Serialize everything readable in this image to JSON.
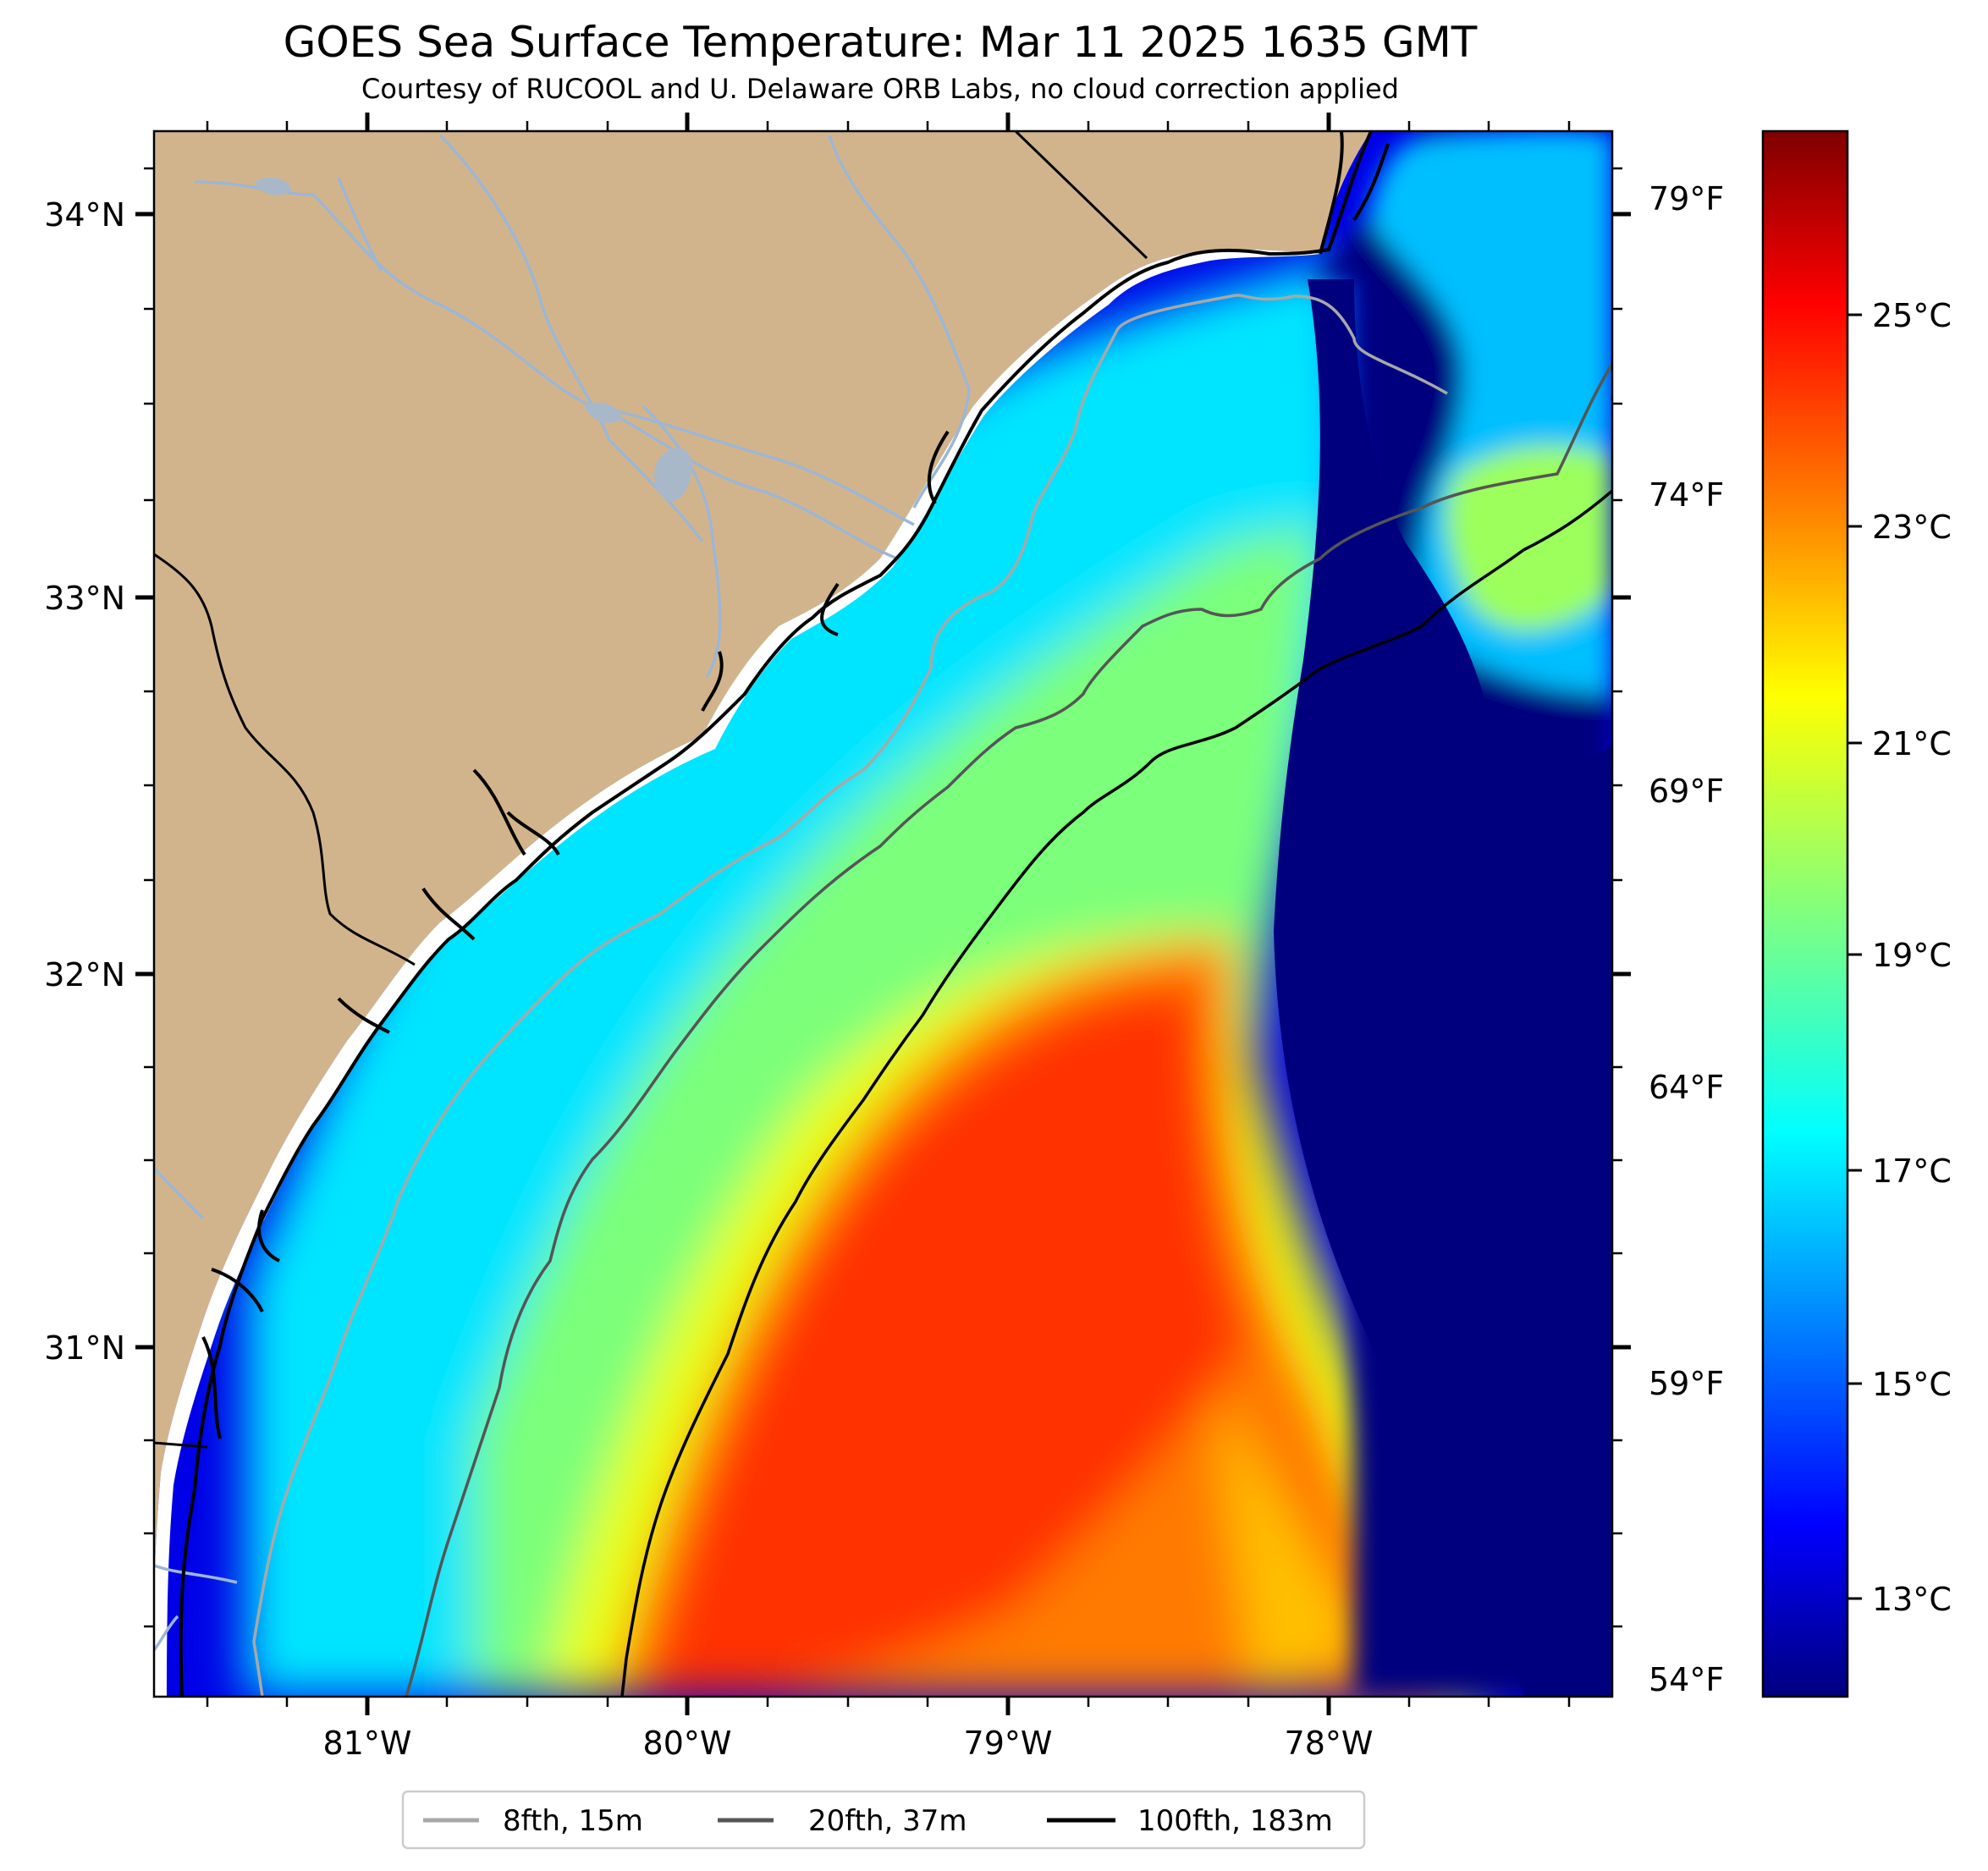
{
  "title": "GOES Sea Surface Temperature: Mar 11 2025 1635 GMT",
  "subtitle": "Courtesy of RUCOOL and U. Delaware ORB Labs, no cloud correction applied",
  "colors": {
    "land": "#D2B48C",
    "rivers": "#9DB6D4",
    "coast": "#000000",
    "contour_8fth": "#A8A8A8",
    "contour_20fth": "#555555",
    "contour_100fth": "#000000",
    "colormap": "jet"
  },
  "map": {
    "lat_ticks": [
      "34°N",
      "33°N",
      "32°N",
      "31°N"
    ],
    "lon_ticks": [
      "81°W",
      "80°W",
      "79°W",
      "78°W"
    ],
    "fahrenheit_ticks": [
      "79°F",
      "74°F",
      "69°F",
      "64°F",
      "59°F",
      "54°F"
    ],
    "lon_range": [
      -81.67,
      -77.1
    ],
    "lat_range": [
      30.09,
      34.22
    ]
  },
  "colorbar": {
    "ticks": [
      "25°C",
      "23°C",
      "21°C",
      "19°C",
      "17°C",
      "15°C",
      "13°C"
    ],
    "range": [
      12.2,
      27.2
    ],
    "cmap_stops": [
      "#00007F",
      "#0000FF",
      "#00FFFF",
      "#80FF80",
      "#FFFF00",
      "#FF8000",
      "#FF0000",
      "#7F0000"
    ]
  },
  "legend": {
    "items": [
      {
        "label": "8fth, 15m",
        "color": "#A8A8A8"
      },
      {
        "label": "20fth, 37m",
        "color": "#555555"
      },
      {
        "label": "100fth, 183m",
        "color": "#000000"
      }
    ]
  }
}
